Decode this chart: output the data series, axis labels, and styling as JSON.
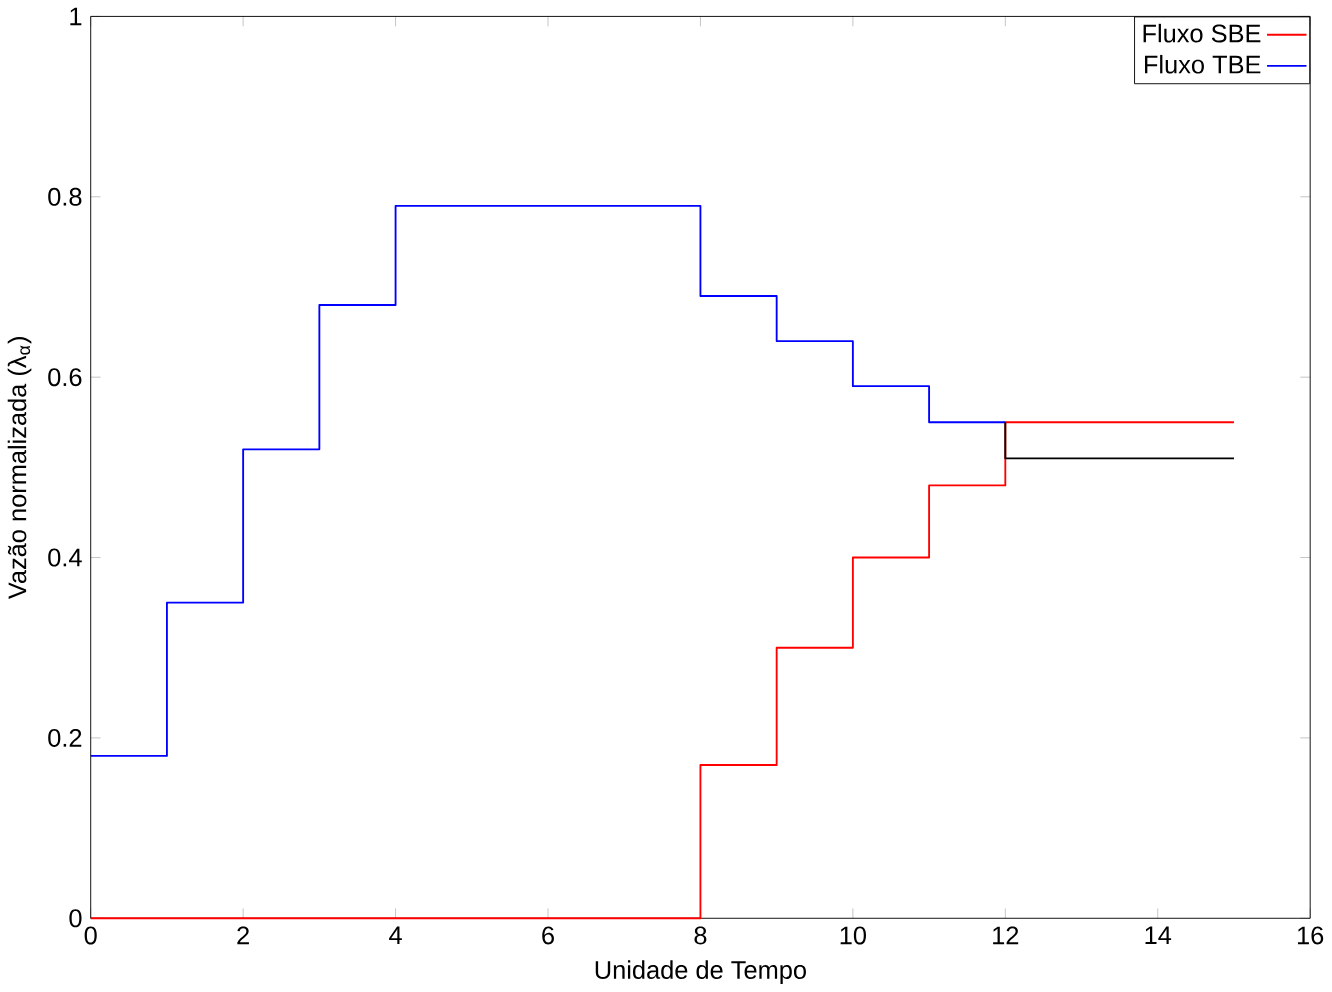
{
  "chart_data": {
    "type": "step",
    "xlabel": "Unidade de Tempo",
    "ylabel": "Vazão normalizada (λ$_{α}$)",
    "series": [
      {
        "name": "Fluxo SBE",
        "color": "#ff0000",
        "x": [
          0,
          8,
          9,
          10,
          11,
          12,
          15
        ],
        "values": [
          0,
          0.17,
          0.3,
          0.4,
          0.48,
          0.55,
          0.55
        ]
      },
      {
        "name": "Fluxo TBE",
        "color": "#0000ff",
        "x": [
          0,
          1,
          2,
          3,
          4,
          8,
          9,
          10,
          11,
          12
        ],
        "values": [
          0.18,
          0.35,
          0.52,
          0.68,
          0.79,
          0.69,
          0.64,
          0.59,
          0.55,
          0.55
        ]
      },
      {
        "type": "line",
        "color": "#000000",
        "x": [
          12,
          12,
          15
        ],
        "values": [
          0.55,
          0.51,
          0.51
        ]
      }
    ],
    "xlim": [
      0,
      16
    ],
    "ylim": [
      0,
      1
    ],
    "xticks": [
      0,
      2,
      4,
      6,
      8,
      10,
      12,
      14,
      16
    ],
    "yticks": [
      0,
      0.2,
      0.4,
      0.6,
      0.8,
      1
    ],
    "grid": false,
    "legend": "top right",
    "marker": "none",
    "line_style": "solid"
  }
}
